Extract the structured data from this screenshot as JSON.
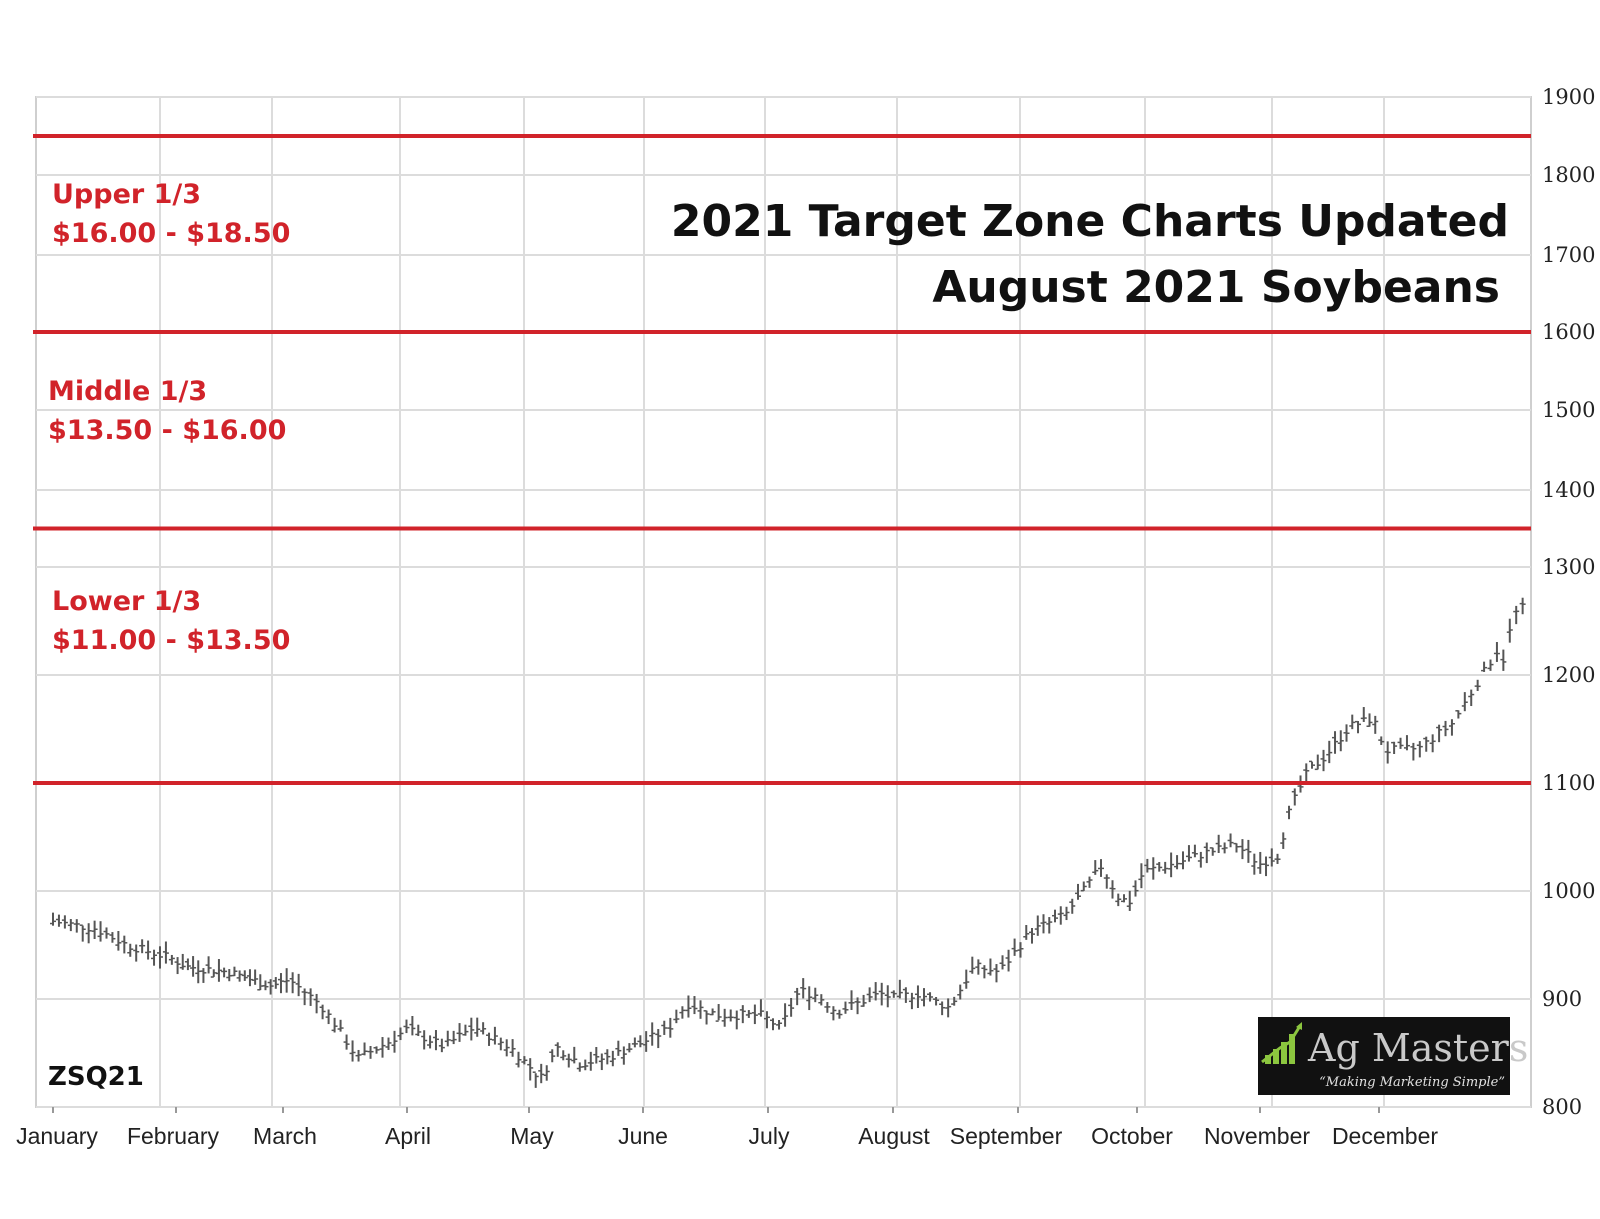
{
  "chart_data": {
    "type": "bar",
    "subtype": "ohlc",
    "symbol": "ZSQ21",
    "title": "2021 Target Zone Charts Updated",
    "subtitle": "August 2021 Soybeans",
    "ylim": [
      800,
      1900
    ],
    "y_ticks": [
      "1900",
      "1800",
      "1700",
      "1600",
      "1500",
      "1400",
      "1300",
      "1200",
      "1100",
      "1000",
      "900",
      "800"
    ],
    "x_ticks": [
      "January",
      "February",
      "March",
      "April",
      "May",
      "June",
      "July",
      "August",
      "September",
      "October",
      "November",
      "December"
    ],
    "grid": true,
    "zone_lines": [
      1850,
      1600,
      1350,
      1100
    ],
    "zones": [
      {
        "name": "Upper 1/3",
        "range": "$16.00 - $18.50"
      },
      {
        "name": "Middle 1/3",
        "range": "$13.50 - $16.00"
      },
      {
        "name": "Lower 1/3",
        "range": "$11.00 - $13.50"
      }
    ],
    "price_keypoints": [
      {
        "x": 0.0,
        "y": 972
      },
      {
        "x": 0.35,
        "y": 965
      },
      {
        "x": 0.6,
        "y": 950
      },
      {
        "x": 0.95,
        "y": 938
      },
      {
        "x": 1.1,
        "y": 930
      },
      {
        "x": 1.5,
        "y": 925
      },
      {
        "x": 1.7,
        "y": 918
      },
      {
        "x": 1.9,
        "y": 912
      },
      {
        "x": 2.05,
        "y": 918
      },
      {
        "x": 2.3,
        "y": 895
      },
      {
        "x": 2.45,
        "y": 872
      },
      {
        "x": 2.6,
        "y": 845
      },
      {
        "x": 2.85,
        "y": 860
      },
      {
        "x": 3.0,
        "y": 872
      },
      {
        "x": 3.3,
        "y": 856
      },
      {
        "x": 3.55,
        "y": 874
      },
      {
        "x": 3.85,
        "y": 855
      },
      {
        "x": 4.0,
        "y": 838
      },
      {
        "x": 4.1,
        "y": 826
      },
      {
        "x": 4.25,
        "y": 855
      },
      {
        "x": 4.45,
        "y": 840
      },
      {
        "x": 4.7,
        "y": 846
      },
      {
        "x": 5.0,
        "y": 860
      },
      {
        "x": 5.2,
        "y": 872
      },
      {
        "x": 5.35,
        "y": 896
      },
      {
        "x": 5.6,
        "y": 885
      },
      {
        "x": 5.95,
        "y": 885
      },
      {
        "x": 6.1,
        "y": 873
      },
      {
        "x": 6.25,
        "y": 908
      },
      {
        "x": 6.4,
        "y": 903
      },
      {
        "x": 6.55,
        "y": 888
      },
      {
        "x": 6.9,
        "y": 905
      },
      {
        "x": 7.0,
        "y": 901
      },
      {
        "x": 7.2,
        "y": 905
      },
      {
        "x": 7.45,
        "y": 892
      },
      {
        "x": 7.65,
        "y": 930
      },
      {
        "x": 7.85,
        "y": 925
      },
      {
        "x": 8.1,
        "y": 962
      },
      {
        "x": 8.4,
        "y": 978
      },
      {
        "x": 8.55,
        "y": 1000
      },
      {
        "x": 8.7,
        "y": 1023
      },
      {
        "x": 8.85,
        "y": 993
      },
      {
        "x": 8.95,
        "y": 990
      },
      {
        "x": 9.05,
        "y": 1018
      },
      {
        "x": 9.3,
        "y": 1025
      },
      {
        "x": 9.55,
        "y": 1035
      },
      {
        "x": 9.8,
        "y": 1043
      },
      {
        "x": 10.0,
        "y": 1025
      },
      {
        "x": 10.15,
        "y": 1033
      },
      {
        "x": 10.25,
        "y": 1075
      },
      {
        "x": 10.4,
        "y": 1110
      },
      {
        "x": 10.55,
        "y": 1125
      },
      {
        "x": 10.75,
        "y": 1152
      },
      {
        "x": 10.95,
        "y": 1160
      },
      {
        "x": 11.05,
        "y": 1130
      },
      {
        "x": 11.3,
        "y": 1132
      },
      {
        "x": 11.55,
        "y": 1155
      },
      {
        "x": 11.75,
        "y": 1195
      },
      {
        "x": 11.9,
        "y": 1225
      },
      {
        "x": 11.95,
        "y": 1210
      },
      {
        "x": 12.0,
        "y": 1255
      },
      {
        "x": 12.08,
        "y": 1262
      }
    ]
  },
  "logo": {
    "name": "Ag Masters",
    "tagline": "“Making Marketing Simple”",
    "icon": "bar-chart-logo-icon",
    "bg_color": "#111111",
    "accent": "#8cc63f"
  },
  "colors": {
    "zone_line": "#d1232a",
    "price_bar": "#555555",
    "grid": "#dcdcdc"
  }
}
